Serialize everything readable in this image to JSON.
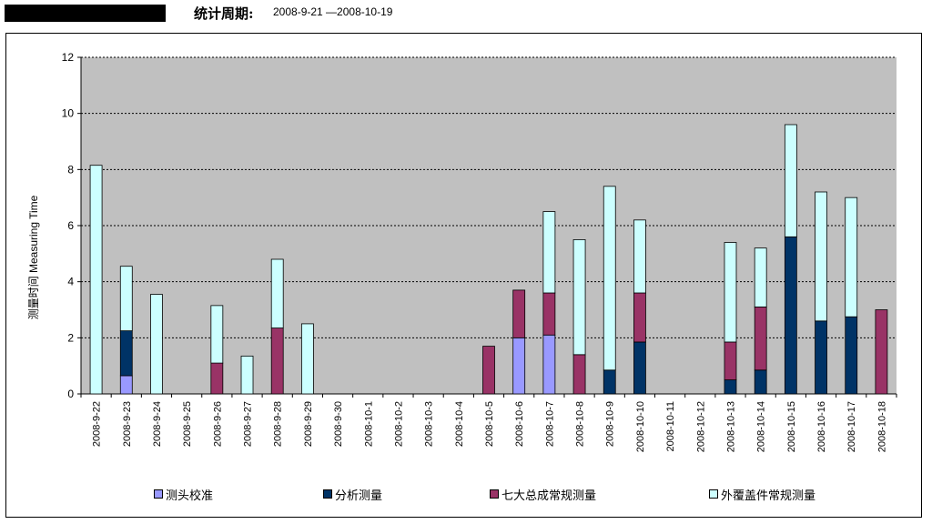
{
  "header": {
    "period_label": "统计周期:",
    "period_value": "2008-9-21 —2008-10-19"
  },
  "colors": {
    "plot_bg": "#c0c0c0",
    "calib": "#9999ff",
    "analysis": "#003366",
    "seven": "#993366",
    "outer": "#ccffff"
  },
  "chart_data": {
    "type": "bar",
    "stacked": true,
    "ylabel": "测量时间 Measuring Time",
    "ylim": [
      0,
      12
    ],
    "yticks": [
      0,
      2,
      4,
      6,
      8,
      10,
      12
    ],
    "grid": "horizontal-dashed",
    "legend_position": "bottom",
    "categories": [
      "2008-9-22",
      "2008-9-23",
      "2008-9-24",
      "2008-9-25",
      "2008-9-26",
      "2008-9-27",
      "2008-9-28",
      "2008-9-29",
      "2008-9-30",
      "2008-10-1",
      "2008-10-2",
      "2008-10-3",
      "2008-10-4",
      "2008-10-5",
      "2008-10-6",
      "2008-10-7",
      "2008-10-8",
      "2008-10-9",
      "2008-10-10",
      "2008-10-11",
      "2008-10-12",
      "2008-10-13",
      "2008-10-14",
      "2008-10-15",
      "2008-10-16",
      "2008-10-17",
      "2008-10-18"
    ],
    "series": [
      {
        "name": "测头校准",
        "color": "#9999ff",
        "values": [
          0,
          0.65,
          0,
          0,
          0,
          0,
          0,
          0,
          0,
          0,
          0,
          0,
          0,
          0,
          2.0,
          2.1,
          0,
          0,
          0,
          0,
          0,
          0,
          0,
          0,
          0,
          0,
          0
        ]
      },
      {
        "name": "分析测量",
        "color": "#003366",
        "values": [
          0,
          1.6,
          0,
          0,
          0,
          0,
          0,
          0,
          0,
          0,
          0,
          0,
          0,
          0,
          0,
          0,
          0,
          0.85,
          1.85,
          0,
          0,
          0.5,
          0.85,
          5.6,
          2.6,
          2.75,
          0
        ]
      },
      {
        "name": "七大总成常规测量",
        "color": "#993366",
        "values": [
          0,
          0,
          0,
          0,
          1.1,
          0,
          2.35,
          0,
          0,
          0,
          0,
          0,
          0,
          1.7,
          1.7,
          1.5,
          1.4,
          0,
          1.75,
          0,
          0,
          1.35,
          2.25,
          0,
          0,
          0,
          3.0
        ]
      },
      {
        "name": "外覆盖件常规测量",
        "color": "#ccffff",
        "values": [
          8.15,
          2.3,
          3.55,
          0,
          2.05,
          1.35,
          2.45,
          2.5,
          0,
          0,
          0,
          0,
          0,
          0,
          0,
          2.9,
          4.1,
          6.55,
          2.6,
          0,
          0,
          3.55,
          2.1,
          4.0,
          4.6,
          4.25,
          0
        ]
      }
    ]
  }
}
